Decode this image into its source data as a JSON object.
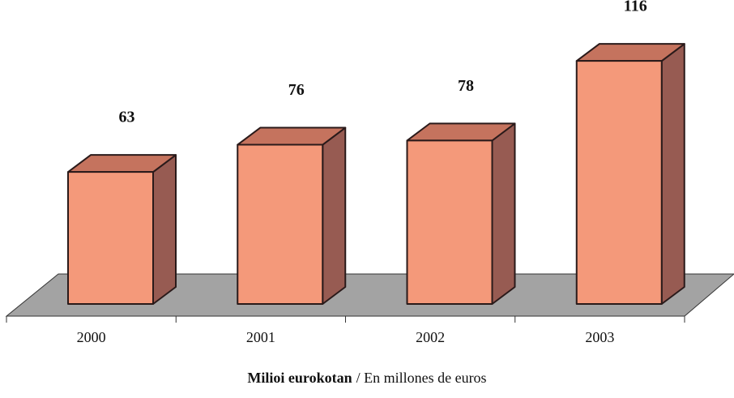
{
  "chart_data": {
    "type": "bar3d",
    "categories": [
      "2000",
      "2001",
      "2002",
      "2003"
    ],
    "values": [
      63,
      76,
      78,
      116
    ],
    "colors": {
      "front": "#f4997a",
      "top": "#c5735e",
      "side": "#975b52",
      "floor": "#a3a3a3"
    },
    "caption": {
      "bold": "Milioi eurokotan",
      "regular": "/ En millones de euros"
    }
  }
}
